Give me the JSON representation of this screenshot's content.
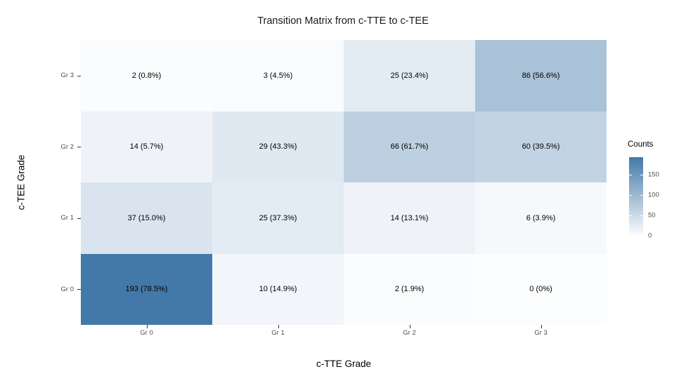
{
  "chart_data": {
    "type": "heatmap",
    "title": "Transition Matrix from c-TTE to c-TEE",
    "xlabel": "c-TTE Grade",
    "ylabel": "c-TEE Grade",
    "x_categories": [
      "Gr 0",
      "Gr 1",
      "Gr 2",
      "Gr 3"
    ],
    "y_categories_top_to_bottom": [
      "Gr 3",
      "Gr 2",
      "Gr 1",
      "Gr 0"
    ],
    "legend": {
      "title": "Counts",
      "ticks": [
        0,
        50,
        100,
        150
      ],
      "min": 0,
      "max": 193
    },
    "colors": {
      "low": "#FCFDFE",
      "high": "#4379A8",
      "cell_text": "#000000",
      "tick_label": "#4D4D4D",
      "axis_tick": "#333333"
    },
    "rows": [
      {
        "y": "Gr 3",
        "counts": [
          2,
          3,
          25,
          86
        ],
        "labels": [
          "2 (0.8%)",
          "3 (4.5%)",
          "25 (23.4%)",
          "86 (56.6%)"
        ]
      },
      {
        "y": "Gr 2",
        "counts": [
          14,
          29,
          66,
          60
        ],
        "labels": [
          "14 (5.7%)",
          "29 (43.3%)",
          "66 (61.7%)",
          "60 (39.5%)"
        ]
      },
      {
        "y": "Gr 1",
        "counts": [
          37,
          25,
          14,
          6
        ],
        "labels": [
          "37 (15.0%)",
          "25 (37.3%)",
          "14 (13.1%)",
          "6 (3.9%)"
        ]
      },
      {
        "y": "Gr 0",
        "counts": [
          193,
          10,
          2,
          0
        ],
        "labels": [
          "193 (78.5%)",
          "10 (14.9%)",
          "2 (1.9%)",
          "0 (0%)"
        ]
      }
    ]
  }
}
